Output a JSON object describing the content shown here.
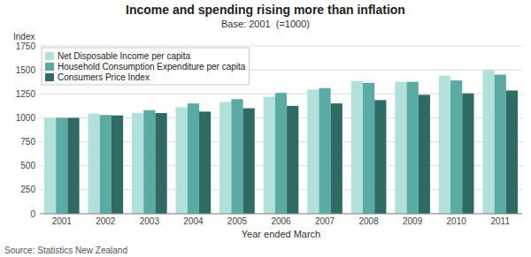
{
  "chart_data": {
    "type": "bar",
    "title": "Income and spending rising more than inflation",
    "subtitle": "Base: 2001  (=1000)",
    "xlabel": "Year ended March",
    "ylabel": "Index",
    "annotations": [
      "Source: Statistics New Zealand"
    ],
    "categories": [
      "2001",
      "2002",
      "2003",
      "2004",
      "2005",
      "2006",
      "2007",
      "2008",
      "2009",
      "2010",
      "2011"
    ],
    "series": [
      {
        "name": "Net Disposable Income per capita",
        "color": "#b2e0db",
        "values": [
          1000,
          1045,
          1050,
          1110,
          1165,
          1220,
          1295,
          1385,
          1375,
          1440,
          1500
        ]
      },
      {
        "name": "Household Consumption Expenditure per capita",
        "color": "#5aaba4",
        "values": [
          1000,
          1030,
          1080,
          1150,
          1195,
          1260,
          1310,
          1365,
          1375,
          1390,
          1450
        ]
      },
      {
        "name": "Consumers Price Index",
        "color": "#2e6b65",
        "values": [
          1000,
          1025,
          1050,
          1065,
          1100,
          1125,
          1150,
          1185,
          1240,
          1255,
          1285
        ]
      }
    ],
    "ylim": [
      0,
      1750
    ],
    "yticks": [
      0,
      250,
      500,
      750,
      1000,
      1250,
      1500,
      1750
    ],
    "grid": true,
    "legend": "upper left"
  }
}
